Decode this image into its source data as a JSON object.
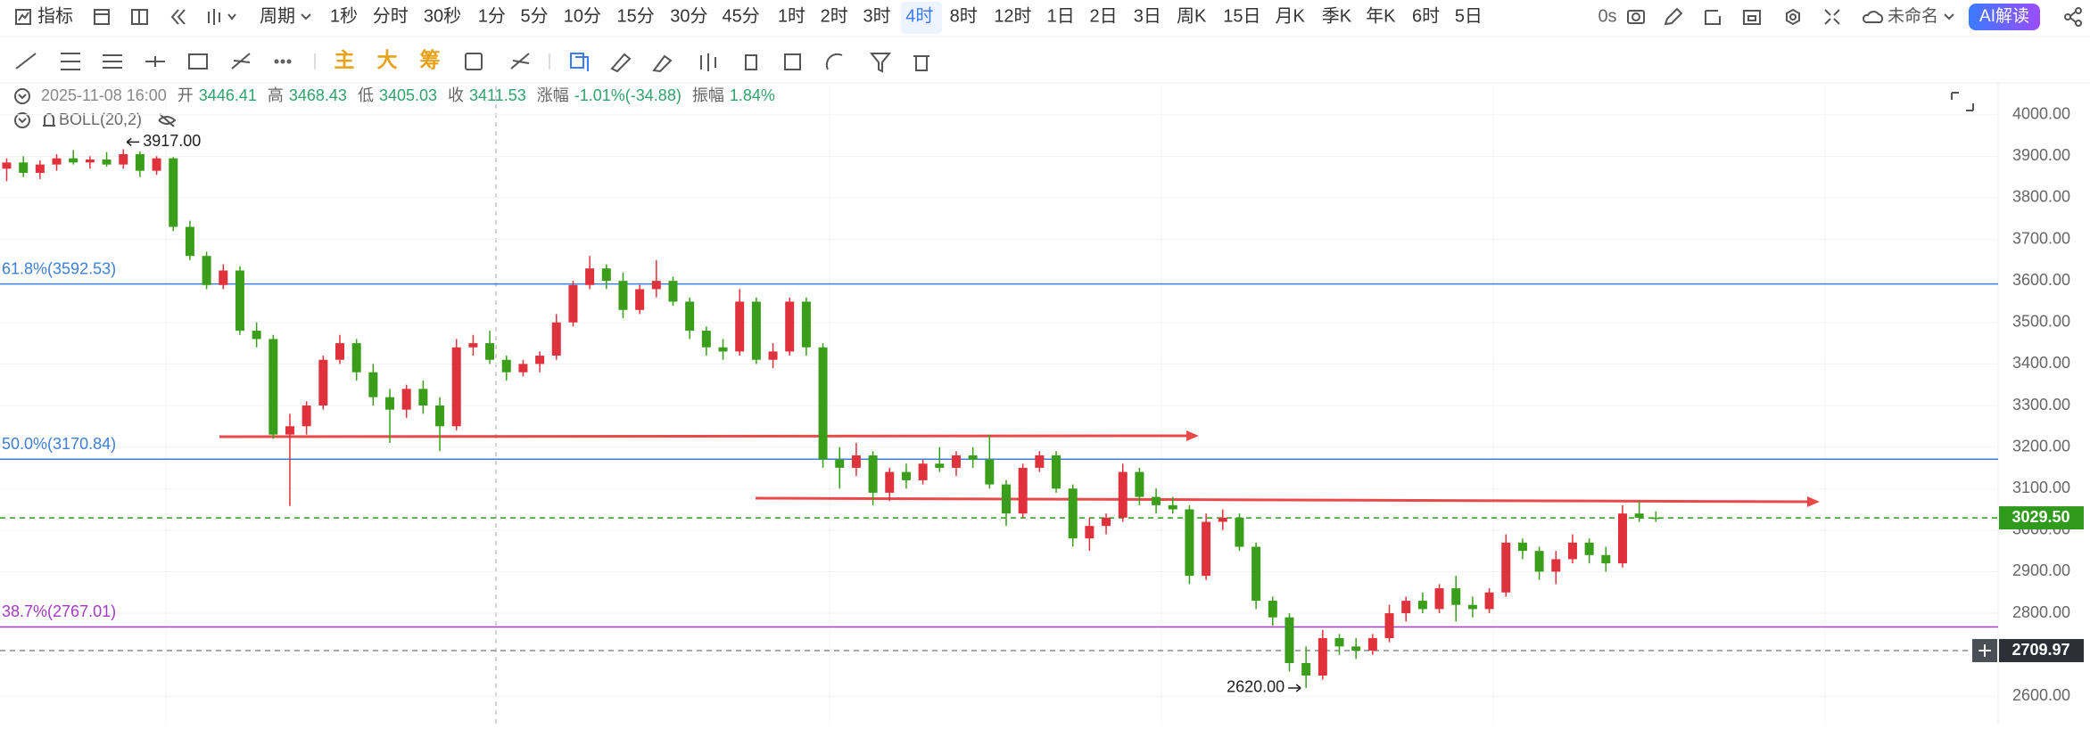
{
  "toolbar": {
    "indicator": "指标",
    "period": "周期",
    "intervals": [
      "1秒",
      "分时",
      "30秒",
      "1分",
      "5分",
      "10分",
      "15分",
      "30分",
      "45分",
      "1时",
      "2时",
      "3时",
      "4时",
      "8时",
      "12时",
      "1日",
      "2日",
      "3日",
      "周K",
      "15日",
      "月K",
      "季K",
      "年K",
      "6时",
      "5日"
    ],
    "selected_index": 12,
    "timer": "0s",
    "layout_name": "未命名",
    "ai_button": "AI解读"
  },
  "drawing_toolbar": {
    "labels": [
      "主",
      "大",
      "筹"
    ]
  },
  "chart_data": {
    "type": "candlestick",
    "info": {
      "date": "2025-11-08 16:00",
      "fields": [
        {
          "name": "开",
          "text": "3446.41"
        },
        {
          "name": "高",
          "text": "3468.43"
        },
        {
          "name": "低",
          "text": "3405.03"
        },
        {
          "name": "收",
          "text": "3411.53"
        },
        {
          "name": "涨幅",
          "text": "-1.01%(-34.88)"
        },
        {
          "name": "振幅",
          "text": "1.84%"
        }
      ]
    },
    "indicator": "BOLL(20,2)",
    "open": [
      3870,
      3885,
      3860,
      3880,
      3895,
      3885,
      3892,
      3880,
      3905,
      3865,
      3895,
      3730,
      3660,
      3590,
      3625,
      3480,
      3460,
      3230,
      3250,
      3300,
      3410,
      3450,
      3380,
      3320,
      3290,
      3340,
      3300,
      3250,
      3440,
      3450,
      3410,
      3380,
      3400,
      3420,
      3500,
      3590,
      3630,
      3600,
      3530,
      3580,
      3600,
      3550,
      3480,
      3440,
      3430,
      3550,
      3410,
      3430,
      3550,
      3440,
      3170,
      3150,
      3180,
      3090,
      3140,
      3120,
      3160,
      3150,
      3180,
      3170,
      3110,
      3040,
      3150,
      3180,
      3100,
      2980,
      3010,
      3030,
      3140,
      3080,
      3060,
      3050,
      2890,
      3020,
      3030,
      2960,
      2830,
      2790,
      2680,
      2650,
      2740,
      2720,
      2710,
      2740,
      2800,
      2830,
      2810,
      2860,
      2820,
      2810,
      2850,
      2970,
      2950,
      2900,
      2930,
      2970,
      2940,
      2920,
      3040,
      3030
    ],
    "high": [
      3895,
      3900,
      3890,
      3905,
      3915,
      3900,
      3910,
      3917,
      3912,
      3900,
      3898,
      3745,
      3670,
      3640,
      3635,
      3500,
      3470,
      3280,
      3310,
      3420,
      3470,
      3460,
      3400,
      3340,
      3350,
      3360,
      3320,
      3460,
      3470,
      3480,
      3420,
      3410,
      3430,
      3520,
      3600,
      3660,
      3640,
      3620,
      3590,
      3650,
      3610,
      3560,
      3490,
      3460,
      3580,
      3560,
      3450,
      3560,
      3560,
      3450,
      3200,
      3210,
      3190,
      3150,
      3160,
      3170,
      3200,
      3190,
      3200,
      3230,
      3120,
      3160,
      3190,
      3190,
      3110,
      3030,
      3040,
      3160,
      3150,
      3100,
      3080,
      3060,
      3040,
      3050,
      3040,
      2970,
      2840,
      2800,
      2720,
      2760,
      2750,
      2740,
      2750,
      2820,
      2840,
      2850,
      2870,
      2890,
      2840,
      2860,
      2990,
      2980,
      2960,
      2950,
      2990,
      2980,
      2960,
      3060,
      3070,
      3045
    ],
    "low": [
      3840,
      3850,
      3845,
      3865,
      3880,
      3870,
      3875,
      3870,
      3850,
      3855,
      3720,
      3650,
      3580,
      3580,
      3470,
      3440,
      3220,
      3058,
      3230,
      3290,
      3400,
      3360,
      3300,
      3210,
      3270,
      3280,
      3190,
      3240,
      3420,
      3400,
      3360,
      3370,
      3380,
      3410,
      3490,
      3580,
      3580,
      3510,
      3520,
      3560,
      3540,
      3460,
      3420,
      3410,
      3420,
      3400,
      3390,
      3420,
      3420,
      3150,
      3100,
      3130,
      3060,
      3070,
      3100,
      3110,
      3140,
      3130,
      3150,
      3100,
      3010,
      3030,
      3140,
      3090,
      2960,
      2950,
      2990,
      3020,
      3060,
      3040,
      3040,
      2870,
      2880,
      3000,
      2950,
      2810,
      2770,
      2660,
      2620,
      2640,
      2700,
      2690,
      2700,
      2730,
      2780,
      2800,
      2800,
      2780,
      2790,
      2800,
      2840,
      2930,
      2880,
      2870,
      2920,
      2920,
      2900,
      2910,
      3020,
      3020
    ],
    "close": [
      3885,
      3860,
      3880,
      3895,
      3885,
      3892,
      3880,
      3905,
      3865,
      3895,
      3730,
      3660,
      3590,
      3625,
      3480,
      3460,
      3230,
      3250,
      3300,
      3410,
      3450,
      3380,
      3320,
      3290,
      3340,
      3300,
      3250,
      3440,
      3450,
      3410,
      3380,
      3400,
      3420,
      3500,
      3590,
      3630,
      3600,
      3530,
      3580,
      3600,
      3550,
      3480,
      3440,
      3430,
      3550,
      3410,
      3430,
      3550,
      3440,
      3170,
      3150,
      3180,
      3090,
      3140,
      3120,
      3160,
      3150,
      3180,
      3170,
      3110,
      3040,
      3150,
      3180,
      3100,
      2980,
      3010,
      3030,
      3140,
      3080,
      3060,
      3050,
      2890,
      3020,
      3030,
      2960,
      2830,
      2790,
      2680,
      2650,
      2740,
      2720,
      2710,
      2740,
      2800,
      2830,
      2810,
      2860,
      2820,
      2810,
      2850,
      2970,
      2950,
      2900,
      2930,
      2970,
      2940,
      2920,
      3040,
      3030,
      3029.5
    ],
    "up_color": "#e0323c",
    "down_color": "#3a9e1a",
    "ylim": [
      2532,
      4068
    ],
    "yticks": [
      {
        "value": 2600,
        "label": "2600.00"
      },
      {
        "value": 2700,
        "label": "2700.00"
      },
      {
        "value": 2800,
        "label": "2800.00"
      },
      {
        "value": 2900,
        "label": "2900.00"
      },
      {
        "value": 3000,
        "label": "3000.00"
      },
      {
        "value": 3100,
        "label": "3100.00"
      },
      {
        "value": 3200,
        "label": "3200.00"
      },
      {
        "value": 3300,
        "label": "3300.00"
      },
      {
        "value": 3400,
        "label": "3400.00"
      },
      {
        "value": 3500,
        "label": "3500.00"
      },
      {
        "value": 3600,
        "label": "3600.00"
      },
      {
        "value": 3700,
        "label": "3700.00"
      },
      {
        "value": 3800,
        "label": "3800.00"
      },
      {
        "value": 3900,
        "label": "3900.00"
      },
      {
        "value": 4000,
        "label": "4000.00"
      }
    ],
    "grid": true,
    "levels": [
      {
        "label": "61.8%(3592.53)",
        "value": 3592.53,
        "color": "#3f7fd6"
      },
      {
        "label": "50.0%(3170.84)",
        "value": 3170.84,
        "color": "#3f7fd6"
      },
      {
        "label": "38.7%(2767.01)",
        "value": 2767.01,
        "color": "#a33cc2"
      }
    ],
    "price_lines": [
      {
        "value": 3029.5,
        "label": "3029.50",
        "color": "#2f9a1c"
      },
      {
        "value": 2709.97,
        "label": "2709.97",
        "color": "#2c3036"
      }
    ],
    "annotations": {
      "max_label": "3917.00",
      "min_label": "2620.00"
    }
  }
}
